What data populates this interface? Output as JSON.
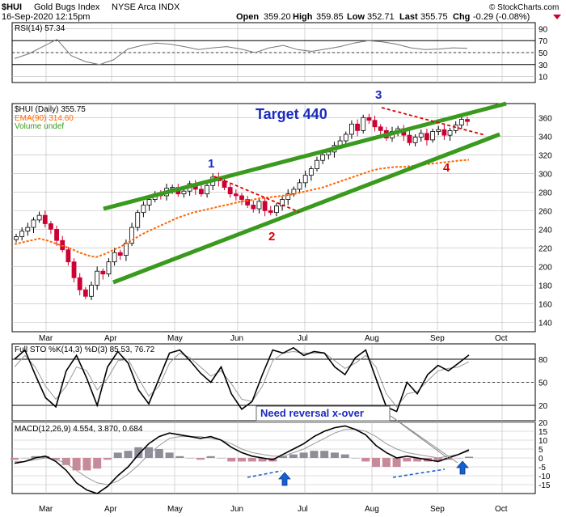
{
  "header": {
    "symbol": "$HUI",
    "name": "Gold Bugs Index",
    "exchange": "NYSE Arca INDX",
    "datetime": "16-Sep-2020 12:15pm",
    "open_label": "Open",
    "open": "359.20",
    "high_label": "High",
    "high": "359.85",
    "low_label": "Low",
    "low": "352.71",
    "last_label": "Last",
    "last": "355.75",
    "chg_label": "Chg",
    "chg": "-0.29 (-0.08%)",
    "watermark": "© StockCharts.com"
  },
  "colors": {
    "up": "#000000",
    "down": "#cc0033",
    "ema": "#ff6600",
    "channel": "#3a9a1e",
    "target": "#1a2bbf",
    "arrow": "#1560d0"
  },
  "chart_data": [
    {
      "type": "line",
      "panel": "rsi",
      "legend": "RSI(14) 57.34",
      "ylim": [
        0,
        100
      ],
      "y_ticks": [
        "10",
        "30",
        "50",
        "70",
        "90"
      ],
      "levels": [
        30,
        70
      ],
      "grid": true,
      "series": [
        {
          "name": "RSI(14)",
          "values": [
            40,
            48,
            60,
            72,
            45,
            35,
            30,
            38,
            56,
            62,
            66,
            64,
            60,
            55,
            58,
            60,
            56,
            50,
            58,
            62,
            55,
            52,
            56,
            60,
            66,
            70,
            68,
            64,
            58,
            55,
            56,
            58,
            57
          ]
        }
      ]
    },
    {
      "type": "candlestick",
      "panel": "price",
      "legend": [
        "$HUI (Daily) 355.75",
        "EMA(90) 314.60",
        "Volume undef"
      ],
      "ylim": [
        130,
        375
      ],
      "y_ticks": [
        "140",
        "160",
        "180",
        "200",
        "220",
        "240",
        "260",
        "280",
        "300",
        "320",
        "340",
        "360"
      ],
      "x_ticks": [
        "Mar",
        "Apr",
        "May",
        "Jun",
        "Jul",
        "Aug",
        "Sep",
        "Oct"
      ],
      "grid": true,
      "closes": [
        232,
        238,
        242,
        250,
        255,
        246,
        240,
        228,
        218,
        205,
        188,
        175,
        168,
        180,
        195,
        192,
        205,
        215,
        212,
        225,
        242,
        258,
        266,
        272,
        278,
        276,
        284,
        285,
        278,
        281,
        289,
        283,
        278,
        287,
        296,
        292,
        285,
        278,
        276,
        272,
        266,
        262,
        270,
        260,
        258,
        265,
        272,
        278,
        283,
        290,
        298,
        305,
        314,
        320,
        323,
        330,
        335,
        342,
        353,
        346,
        360,
        357,
        350,
        346,
        338,
        345,
        348,
        341,
        333,
        339,
        343,
        336,
        345,
        347,
        341,
        346,
        352,
        358,
        355.75
      ],
      "ema": [
        224,
        226,
        228,
        230,
        228,
        225,
        222,
        219,
        215,
        212,
        210,
        213,
        217,
        221,
        226,
        231,
        236,
        240,
        244,
        248,
        252,
        255,
        258,
        260,
        262,
        264,
        266,
        268,
        270,
        271,
        273,
        274,
        275,
        276,
        277,
        279,
        281,
        283,
        285,
        288,
        291,
        294,
        297,
        300,
        303,
        305,
        306,
        307,
        307,
        308,
        309,
        310,
        311,
        312,
        313,
        314,
        314.6
      ],
      "annotations": [
        {
          "text": "Target 440"
        },
        {
          "text": "1"
        },
        {
          "text": "2"
        },
        {
          "text": "3"
        },
        {
          "text": "4"
        }
      ],
      "channel": {
        "upper": [
          [
            135,
            262
          ],
          [
            164,
            375
          ]
        ],
        "lower": [
          [
            135,
            183
          ],
          [
            164,
            342
          ]
        ]
      }
    },
    {
      "type": "line",
      "panel": "stochastic",
      "legend": "Full STO %K(14,3) %D(3) 85.53, 76.72",
      "ylim": [
        0,
        100
      ],
      "y_ticks": [
        "20",
        "50",
        "80"
      ],
      "levels": [
        20,
        80
      ],
      "grid": true,
      "series": [
        {
          "name": "%K(14,3)",
          "values": [
            80,
            92,
            60,
            30,
            18,
            65,
            85,
            55,
            20,
            70,
            90,
            75,
            40,
            22,
            55,
            88,
            92,
            78,
            62,
            50,
            70,
            35,
            15,
            25,
            60,
            92,
            88,
            95,
            85,
            90,
            88,
            70,
            60,
            82,
            92,
            55,
            18,
            12,
            50,
            35,
            60,
            72,
            65,
            75,
            85.53
          ]
        },
        {
          "name": "%D(3)",
          "values": [
            70,
            85,
            70,
            45,
            28,
            45,
            70,
            65,
            40,
            55,
            78,
            80,
            55,
            32,
            45,
            75,
            88,
            82,
            70,
            58,
            65,
            48,
            28,
            25,
            45,
            78,
            88,
            90,
            88,
            88,
            88,
            78,
            68,
            75,
            85,
            70,
            35,
            18,
            35,
            38,
            52,
            65,
            68,
            70,
            76.72
          ]
        }
      ]
    },
    {
      "type": "bar",
      "panel": "macd",
      "legend": "MACD(12,26,9) 4.554, 3.870, 0.684",
      "ylim": [
        -20,
        20
      ],
      "y_ticks": [
        "-15",
        "-10",
        "-5",
        "0",
        "5",
        "10",
        "15",
        "20"
      ],
      "annotations": [
        {
          "text": "Need reversal x-over"
        }
      ],
      "series": [
        {
          "name": "MACD(12,26,9)",
          "values": [
            -3,
            -2,
            0,
            1,
            -2,
            -7,
            -14,
            -18,
            -20,
            -16,
            -10,
            -5,
            2,
            8,
            12,
            14,
            13,
            12,
            11,
            12,
            10,
            6,
            3,
            1,
            0,
            -1,
            2,
            5,
            8,
            12,
            15,
            17,
            18,
            16,
            13,
            7,
            3,
            0,
            1,
            0,
            -1,
            -2,
            0,
            2,
            4.554
          ]
        },
        {
          "name": "signal",
          "values": [
            -2,
            -2,
            -1,
            0,
            -1,
            -3,
            -7,
            -11,
            -14,
            -15,
            -13,
            -9,
            -4,
            2,
            7,
            11,
            12,
            12,
            12,
            11,
            10,
            8,
            5,
            3,
            2,
            1,
            1,
            3,
            5,
            8,
            11,
            14,
            16,
            16,
            15,
            12,
            8,
            5,
            3,
            2,
            1,
            0,
            1,
            2,
            3.87
          ]
        },
        {
          "name": "histogram",
          "values": [
            -1,
            0,
            1,
            1,
            -1,
            -4,
            -7,
            -7,
            -6,
            -1,
            3,
            4,
            6,
            6,
            5,
            3,
            1,
            0,
            -1,
            1,
            0,
            -2,
            -2,
            -2,
            -2,
            -2,
            1,
            2,
            3,
            4,
            4,
            3,
            2,
            0,
            -2,
            -5,
            -5,
            -5,
            -2,
            -2,
            -2,
            -2,
            -1,
            0,
            0.684
          ]
        }
      ]
    }
  ]
}
